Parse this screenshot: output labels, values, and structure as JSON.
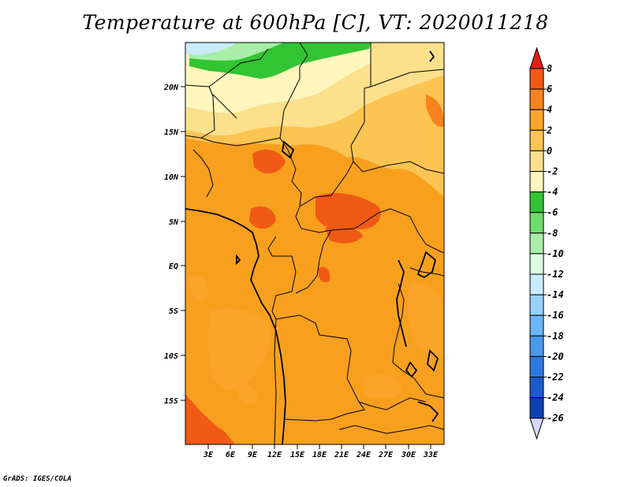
{
  "title": "Temperature at 600hPa [C], VT: 2020011218",
  "credit": "GrADS: IGES/COLA",
  "map": {
    "lat_ticks": [
      "20N",
      "15N",
      "10N",
      "5N",
      "EQ",
      "5S",
      "10S",
      "15S"
    ],
    "lon_ticks": [
      "3E",
      "6E",
      "9E",
      "12E",
      "15E",
      "18E",
      "21E",
      "24E",
      "27E",
      "30E",
      "33E"
    ]
  },
  "colorbar": {
    "labels": [
      "8",
      "6",
      "4",
      "2",
      "0",
      "-2",
      "-4",
      "-6",
      "-8",
      "-10",
      "-12",
      "-14",
      "-16",
      "-18",
      "-20",
      "-22",
      "-24",
      "-26"
    ],
    "colors": [
      "#e02010",
      "#f05a14",
      "#f8821e",
      "#fba42a",
      "#fcc452",
      "#fce08c",
      "#fef6bc",
      "#33c433",
      "#6ddc6d",
      "#a8eea8",
      "#dcfadc",
      "#c8ecfc",
      "#96d2fa",
      "#6ab6f6",
      "#4a98ec",
      "#2c78e0",
      "#1a5ccc",
      "#0e40b2",
      "#0a1e86",
      "#d8d8f8"
    ]
  }
}
